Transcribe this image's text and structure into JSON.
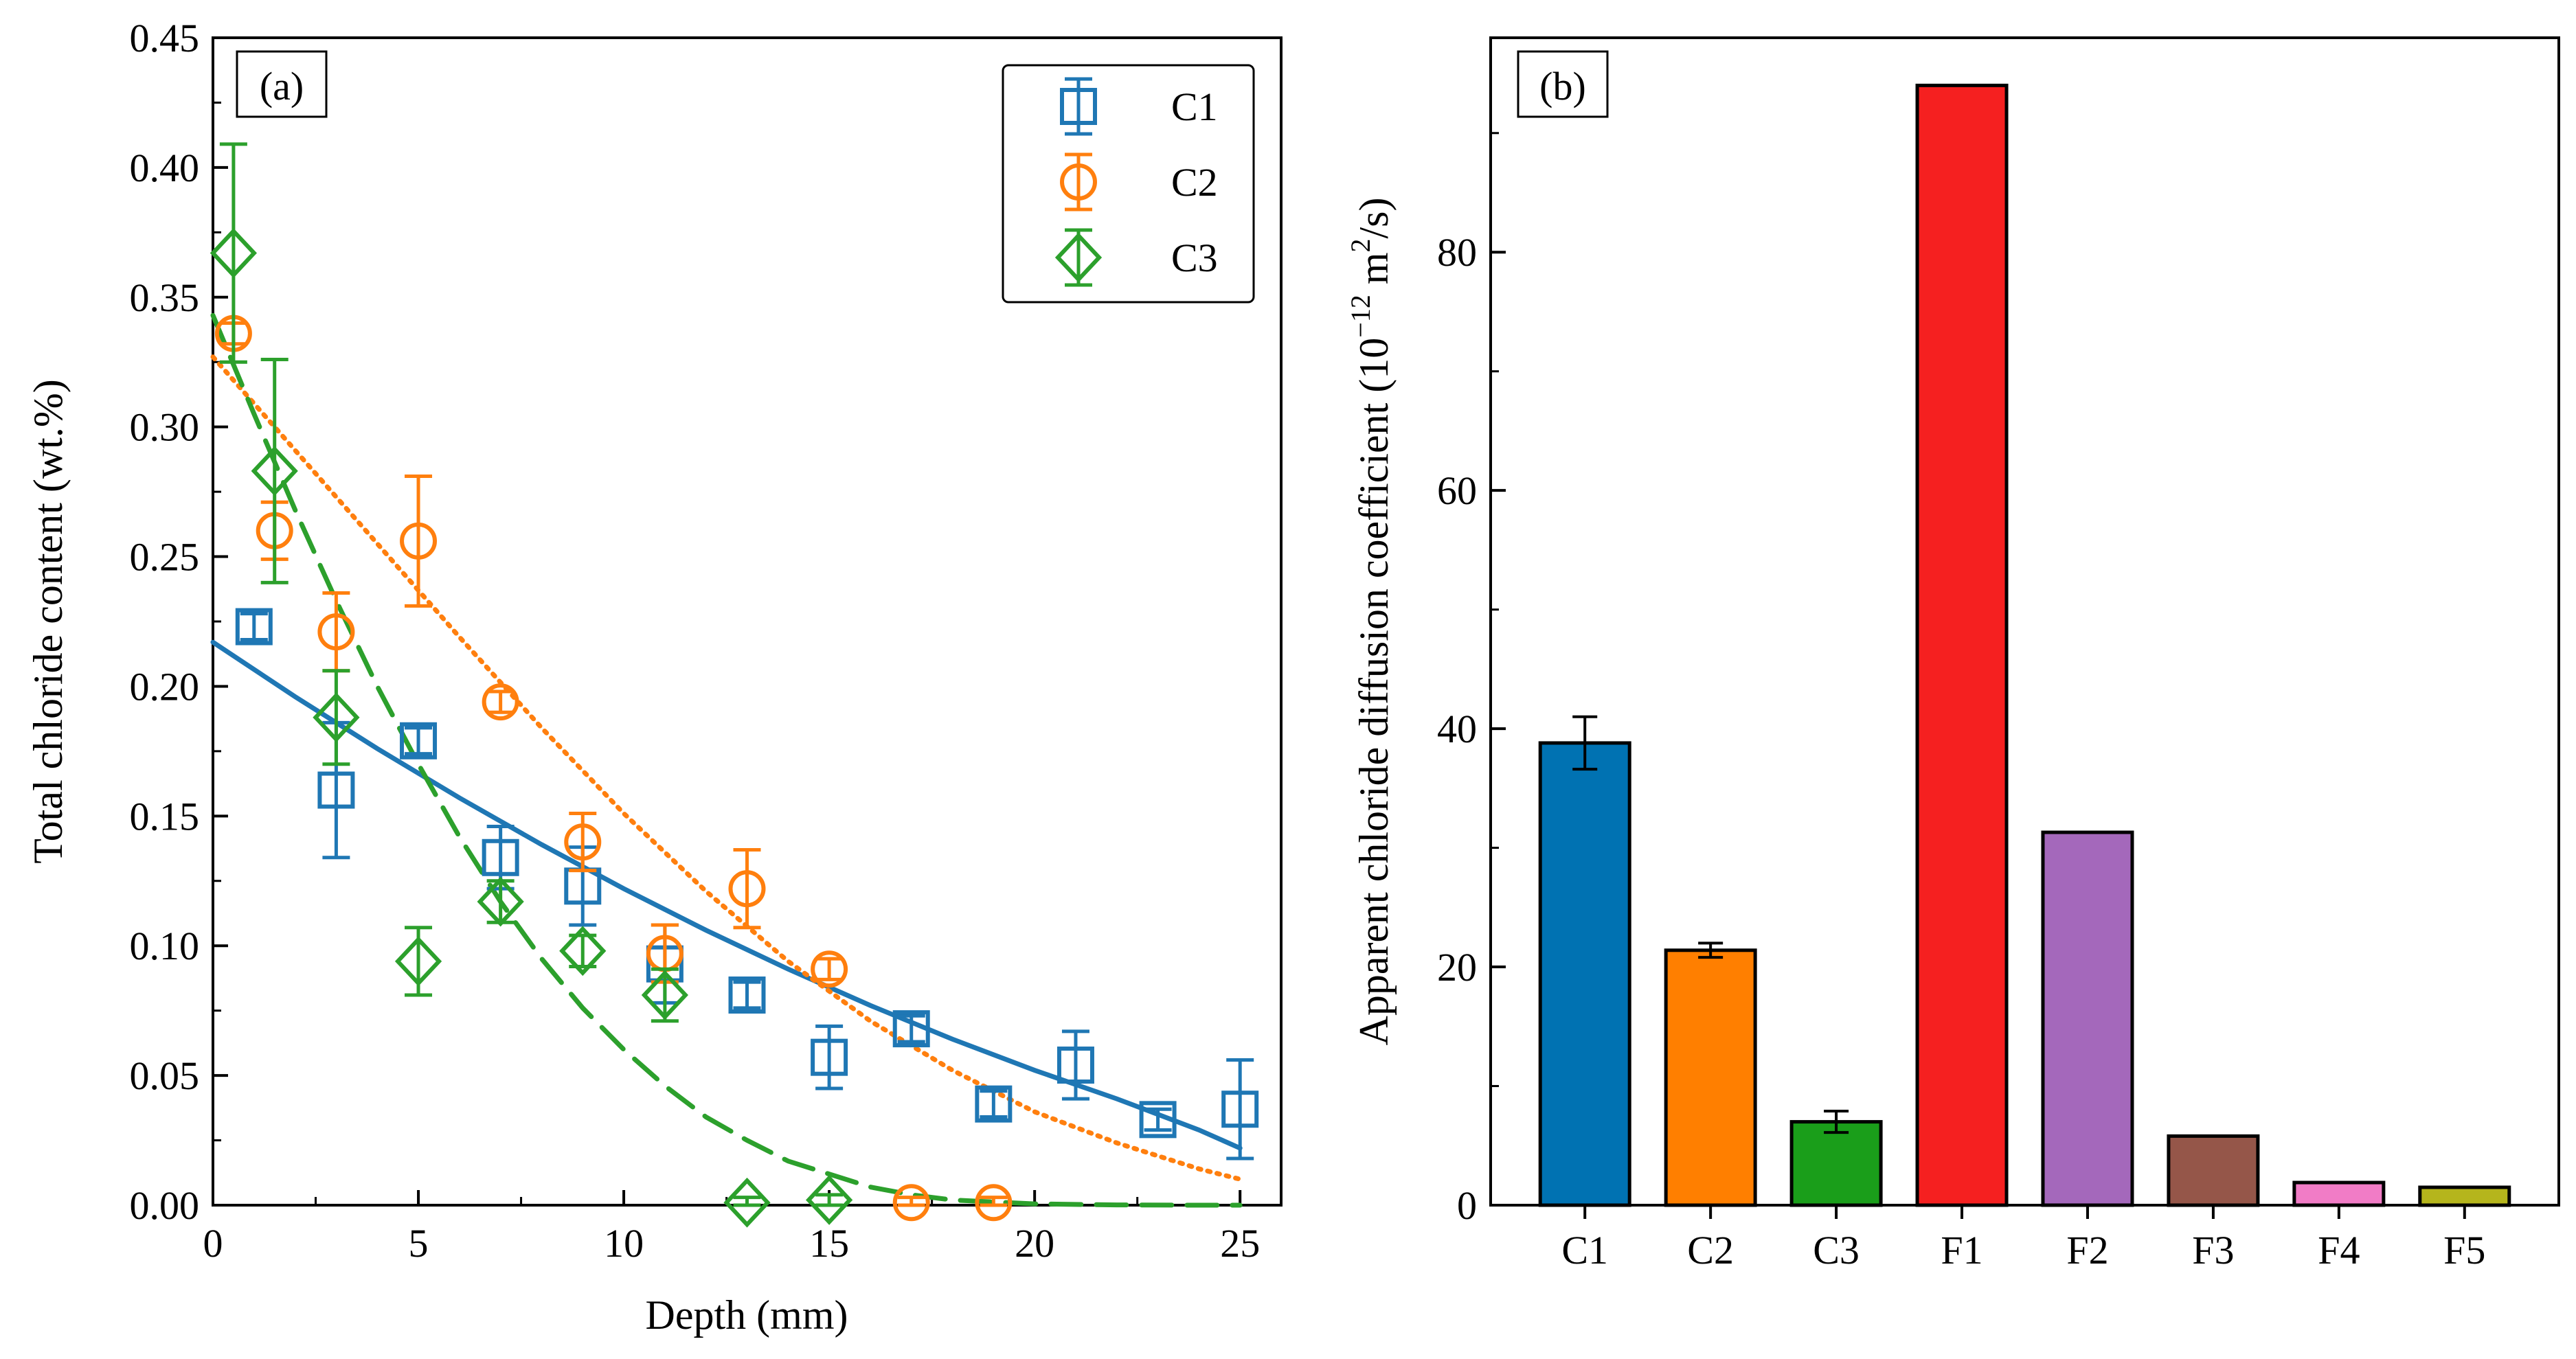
{
  "chart_data": [
    {
      "panel_label": "(a)",
      "type": "scatter",
      "xlabel": "Depth (mm)",
      "ylabel": "Total chloride content (wt.%)",
      "xlim": [
        0,
        26
      ],
      "ylim": [
        0,
        0.45
      ],
      "xticks": [
        0,
        5,
        10,
        15,
        20,
        25
      ],
      "xtick_labels": [
        "0",
        "5",
        "10",
        "15",
        "20",
        "25"
      ],
      "yticks": [
        0,
        0.05,
        0.1,
        0.15,
        0.2,
        0.25,
        0.3,
        0.35,
        0.4,
        0.45
      ],
      "ytick_labels": [
        "0.00",
        "0.05",
        "0.10",
        "0.15",
        "0.20",
        "0.25",
        "0.30",
        "0.35",
        "0.40",
        "0.45"
      ],
      "legend_position": "top-right",
      "series": [
        {
          "name": "C1",
          "color": "#1f77b4",
          "marker": "square",
          "x": [
            1,
            3,
            5,
            7,
            9,
            11,
            13,
            15,
            17,
            19,
            21,
            23,
            25
          ],
          "y": [
            0.223,
            0.16,
            0.179,
            0.134,
            0.123,
            0.093,
            0.081,
            0.057,
            0.068,
            0.039,
            0.054,
            0.033,
            0.037
          ],
          "err": [
            0.005,
            0.026,
            0.005,
            0.012,
            0.015,
            0.015,
            0.005,
            0.012,
            0.005,
            0.005,
            0.013,
            0.004,
            0.019
          ],
          "fit": {
            "style": "solid",
            "x": [
              0,
              2,
              4,
              6,
              8,
              10,
              12,
              14,
              16,
              18,
              20,
              22,
              24,
              25
            ],
            "y": [
              0.217,
              0.196,
              0.176,
              0.157,
              0.139,
              0.122,
              0.106,
              0.091,
              0.077,
              0.064,
              0.052,
              0.041,
              0.029,
              0.022
            ]
          }
        },
        {
          "name": "C2",
          "color": "#ff7f0e",
          "marker": "circle",
          "x": [
            0.5,
            1.5,
            3,
            5,
            7,
            9,
            11,
            13,
            15,
            17,
            19
          ],
          "y": [
            0.336,
            0.26,
            0.221,
            0.256,
            0.194,
            0.14,
            0.097,
            0.122,
            0.091,
            0.001,
            0.001
          ],
          "err": [
            0.004,
            0.011,
            0.015,
            0.025,
            0.004,
            0.011,
            0.011,
            0.015,
            0.004,
            0.002,
            0.002
          ],
          "fit": {
            "style": "dotted",
            "x": [
              0,
              2,
              4,
              6,
              8,
              10,
              12,
              14,
              16,
              18,
              20,
              22,
              24,
              25
            ],
            "y": [
              0.327,
              0.291,
              0.255,
              0.219,
              0.184,
              0.151,
              0.121,
              0.094,
              0.071,
              0.052,
              0.036,
              0.024,
              0.014,
              0.01
            ]
          }
        },
        {
          "name": "C3",
          "color": "#2ca02c",
          "marker": "diamond",
          "x": [
            0.5,
            1.5,
            3,
            5,
            7,
            9,
            11,
            13,
            15
          ],
          "y": [
            0.367,
            0.283,
            0.188,
            0.094,
            0.117,
            0.098,
            0.081,
            0.001,
            0.002
          ],
          "err": [
            0.042,
            0.043,
            0.018,
            0.013,
            0.008,
            0.006,
            0.01,
            0.002,
            0.002
          ],
          "fit": {
            "style": "dashed",
            "x": [
              0,
              1,
              2,
              3,
              4,
              5,
              6,
              7,
              8,
              9,
              10,
              11,
              12,
              13,
              14,
              15,
              16,
              17,
              18,
              20,
              22,
              24,
              25
            ],
            "y": [
              0.343,
              0.305,
              0.268,
              0.233,
              0.2,
              0.17,
              0.142,
              0.117,
              0.095,
              0.076,
              0.06,
              0.046,
              0.034,
              0.025,
              0.017,
              0.012,
              0.007,
              0.004,
              0.002,
              0.0005,
              0.0001,
              0,
              0
            ]
          }
        }
      ]
    },
    {
      "panel_label": "(b)",
      "type": "bar",
      "ylabel": "Apparent chloride diffusion coefficient",
      "ylabel_unit_prefix": "(10",
      "ylabel_unit_exp": "−12",
      "ylabel_unit_mid": " m",
      "ylabel_unit_exp2": "2",
      "ylabel_unit_suffix": "/s)",
      "ylim": [
        0,
        98
      ],
      "yticks": [
        0,
        20,
        40,
        60,
        80
      ],
      "ytick_labels": [
        "0",
        "20",
        "40",
        "60",
        "80"
      ],
      "categories": [
        "C1",
        "C2",
        "C3",
        "F1",
        "F2",
        "F3",
        "F4",
        "F5"
      ],
      "values": [
        38.8,
        21.4,
        7.0,
        94.0,
        31.3,
        5.8,
        1.9,
        1.5
      ],
      "errors": [
        2.2,
        0.6,
        0.9,
        null,
        null,
        null,
        null,
        null
      ],
      "colors": [
        "#0072b2",
        "#ff7f00",
        "#1a9e1a",
        "#f52020",
        "#a468bb",
        "#955649",
        "#f17cc6",
        "#b5b51c"
      ]
    }
  ]
}
